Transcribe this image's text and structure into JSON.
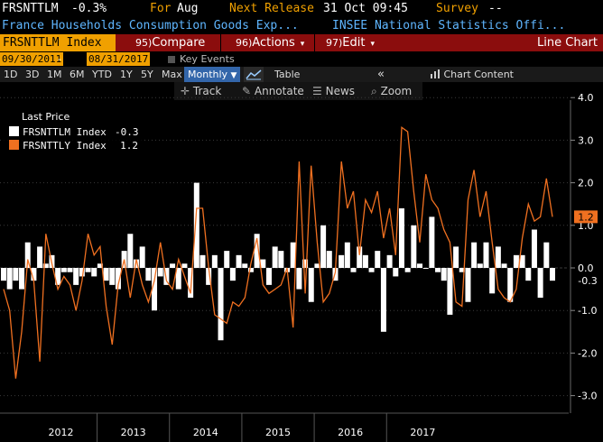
{
  "header": {
    "ticker": "FRSNTTLM",
    "change": "-0.3%",
    "for_label": "For",
    "for_value": "Aug",
    "next_release_label": "Next Release",
    "next_release_value": "31 Oct 09:45",
    "survey_label": "Survey",
    "survey_value": "--",
    "description": "France Households Consumption Goods Exp...",
    "source": "INSEE National Statistics Offi..."
  },
  "function_bar": {
    "security": "FRSNTTLM Index",
    "buttons": [
      {
        "num": "95)",
        "label": "Compare"
      },
      {
        "num": "96)",
        "label": "Actions"
      },
      {
        "num": "97)",
        "label": "Edit"
      }
    ],
    "chart_title": "Line Chart"
  },
  "date_range": {
    "start": "09/30/2011",
    "dash": "-",
    "end": "08/31/2017",
    "key_events": "Key Events"
  },
  "periods": [
    "1D",
    "3D",
    "1M",
    "6M",
    "YTD",
    "1Y",
    "5Y",
    "Max"
  ],
  "frequency": "Monthly",
  "table_label": "Table",
  "collapse_icon": "double-chevron-left-icon",
  "chart_content_label": "Chart Content",
  "tools": {
    "track": "Track",
    "annotate": "Annotate",
    "news": "News",
    "zoom": "Zoom"
  },
  "legend": {
    "title": "Last Price",
    "series": [
      {
        "label": "FRSNTTLM Index",
        "value": "-0.3",
        "color": "#ffffff"
      },
      {
        "label": "FRSNTTLY Index",
        "value": "1.2",
        "color": "#f07020"
      }
    ]
  },
  "colors": {
    "amber": "#f0a000",
    "function_bar": "#8b0d0d",
    "line_series": "#f07020",
    "bar_series": "#ffffff",
    "blue_text": "#5fb6ff"
  },
  "chart_data": {
    "type": "bar+line",
    "x_start": "2011-09",
    "x_end": "2017-08",
    "years": [
      "2012",
      "2013",
      "2014",
      "2015",
      "2016",
      "2017"
    ],
    "ylim": [
      -3.0,
      4.0
    ],
    "y_ticks": [
      "4.0",
      "3.0",
      "2.0",
      "1.0",
      "0.0",
      "-1.0",
      "-2.0",
      "-3.0"
    ],
    "series": [
      {
        "name": "FRSNTTLM Index",
        "type": "bar",
        "values": [
          -0.3,
          -0.5,
          -0.3,
          -0.5,
          0.6,
          -0.3,
          0.5,
          0.1,
          0.3,
          -0.4,
          -0.1,
          -0.1,
          -0.4,
          -0.2,
          -0.1,
          -0.2,
          0.1,
          -0.3,
          -0.4,
          -0.5,
          0.4,
          0.8,
          0.2,
          0.5,
          -0.3,
          -1.0,
          -0.2,
          -0.4,
          0.1,
          -0.5,
          0.1,
          -0.7,
          2.0,
          0.3,
          -0.4,
          0.3,
          -1.7,
          0.4,
          -0.3,
          0.3,
          0.1,
          -0.1,
          0.8,
          0.2,
          -0.4,
          0.5,
          0.4,
          -0.1,
          0.6,
          -0.5,
          0.2,
          -0.8,
          0.1,
          1.0,
          0.4,
          -0.3,
          0.3,
          0.6,
          -0.1,
          0.5,
          0.3,
          -0.1,
          0.4,
          -1.5,
          0.3,
          -0.2,
          1.4,
          -0.1,
          1.0,
          0.1,
          0.0,
          1.2,
          -0.1,
          -0.3,
          -1.1,
          0.5,
          -0.1,
          -0.8,
          0.6,
          0.1,
          0.6,
          -0.6,
          0.5,
          0.1,
          -0.8,
          0.3,
          0.3,
          -0.3,
          0.9,
          -0.7,
          0.6,
          -0.3
        ],
        "color": "#ffffff"
      },
      {
        "name": "FRSNTTLY Index",
        "type": "line",
        "values": [
          -0.5,
          -1.0,
          -2.6,
          -1.5,
          0.2,
          -0.3,
          -2.2,
          0.8,
          0.1,
          -0.5,
          -0.2,
          -0.4,
          -1.0,
          -0.3,
          0.8,
          0.3,
          0.5,
          -0.9,
          -1.8,
          -0.4,
          0.2,
          -0.7,
          0.2,
          -0.4,
          -0.8,
          -0.3,
          0.6,
          -0.3,
          -0.5,
          0.2,
          -0.2,
          -0.6,
          1.4,
          1.4,
          0.0,
          -1.1,
          -1.2,
          -1.3,
          -0.8,
          -0.9,
          -0.7,
          0.1,
          0.7,
          -0.4,
          -0.6,
          -0.5,
          -0.4,
          0.0,
          -1.4,
          2.5,
          -0.6,
          2.4,
          0.6,
          -0.8,
          -0.6,
          -0.1,
          2.5,
          1.4,
          1.8,
          0.3,
          1.6,
          1.3,
          1.8,
          0.7,
          1.4,
          0.3,
          3.3,
          3.2,
          1.8,
          0.6,
          2.2,
          1.6,
          1.4,
          0.9,
          0.6,
          -0.8,
          -0.9,
          1.6,
          2.3,
          1.2,
          1.8,
          0.6,
          -0.5,
          -0.7,
          -0.8,
          -0.5,
          0.7,
          1.5,
          1.1,
          1.2,
          2.1,
          1.2
        ],
        "color": "#f07020"
      }
    ],
    "last_values": {
      "line": "1.2",
      "bar": "-0.3"
    },
    "grid": true
  }
}
